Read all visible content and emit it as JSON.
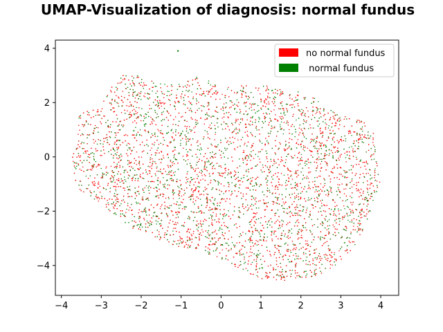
{
  "chart_data": {
    "type": "scatter",
    "title": "UMAP-Visualization of diagnosis: normal fundus",
    "xlabel": "",
    "ylabel": "",
    "xlim": [
      -4.15,
      4.45
    ],
    "ylim": [
      -5.1,
      4.3
    ],
    "xticks": [
      -4,
      -3,
      -2,
      -1,
      0,
      1,
      2,
      3,
      4
    ],
    "yticks": [
      -4,
      -2,
      0,
      2,
      4
    ],
    "xtick_labels": [
      "−4",
      "−3",
      "−2",
      "−1",
      "0",
      "1",
      "2",
      "3",
      "4"
    ],
    "ytick_labels": [
      "−4",
      "−2",
      "0",
      "2",
      "4"
    ],
    "grid": false,
    "legend_position": "top-right",
    "series": [
      {
        "name": "no normal fundus",
        "color": "#ff0000",
        "point_count": 4200,
        "cluster_outline": [
          [
            -3.75,
            -0.1
          ],
          [
            -3.6,
            0.6
          ],
          [
            -3.55,
            1.6
          ],
          [
            -3.0,
            1.9
          ],
          [
            -2.7,
            2.7
          ],
          [
            -2.5,
            3.0
          ],
          [
            -1.9,
            3.0
          ],
          [
            -1.6,
            2.7
          ],
          [
            -1.1,
            2.65
          ],
          [
            -0.5,
            3.0
          ],
          [
            0.0,
            2.6
          ],
          [
            0.8,
            2.7
          ],
          [
            1.6,
            2.5
          ],
          [
            2.2,
            2.35
          ],
          [
            2.7,
            1.8
          ],
          [
            3.2,
            1.5
          ],
          [
            3.6,
            1.3
          ],
          [
            3.85,
            0.9
          ],
          [
            3.9,
            0.0
          ],
          [
            3.98,
            -1.0
          ],
          [
            3.8,
            -1.8
          ],
          [
            3.55,
            -2.7
          ],
          [
            3.3,
            -3.4
          ],
          [
            2.9,
            -4.0
          ],
          [
            2.3,
            -4.45
          ],
          [
            1.6,
            -4.55
          ],
          [
            1.0,
            -4.5
          ],
          [
            0.4,
            -4.1
          ],
          [
            0.0,
            -3.8
          ],
          [
            -0.5,
            -3.45
          ],
          [
            -1.1,
            -3.3
          ],
          [
            -1.8,
            -2.9
          ],
          [
            -2.4,
            -2.5
          ],
          [
            -3.0,
            -1.7
          ],
          [
            -3.5,
            -1.3
          ],
          [
            -3.7,
            -0.8
          ]
        ]
      },
      {
        "name": " normal fundus",
        "color": "#008000",
        "point_count": 2600
      }
    ],
    "outliers": [
      [
        -1.08,
        3.9
      ]
    ]
  }
}
